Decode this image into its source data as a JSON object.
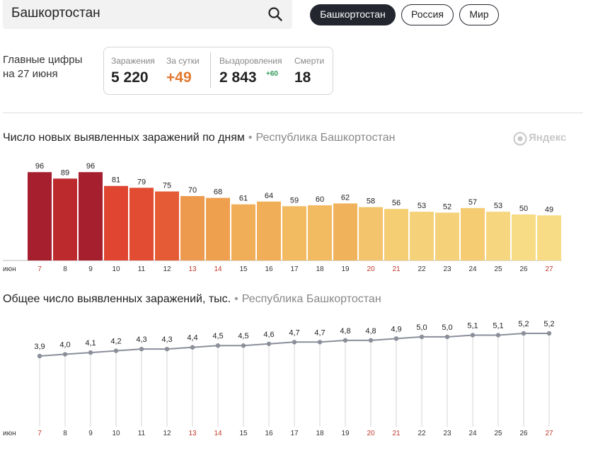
{
  "search": {
    "value": "Башкортостан"
  },
  "region_tabs": [
    {
      "label": "Башкортостан",
      "active": true
    },
    {
      "label": "Россия",
      "active": false
    },
    {
      "label": "Мир",
      "active": false
    }
  ],
  "main_figures": {
    "title_line1": "Главные цифры",
    "title_line2": "на 27 июня",
    "infections_label": "Заражения",
    "infections_value": "5 220",
    "per_day_label": "За сутки",
    "per_day_value": "+49",
    "recovered_label": "Выздоровления",
    "recovered_value": "2 843",
    "recovered_delta": "+60",
    "deaths_label": "Смерти",
    "deaths_value": "18"
  },
  "logo_text": "Яндекс",
  "chart_data": [
    {
      "type": "bar",
      "title": "Число новых выявленных заражений по дням",
      "region": "Республика Башкортостан",
      "month_label": "июн",
      "categories": [
        "7",
        "8",
        "9",
        "10",
        "11",
        "12",
        "13",
        "14",
        "15",
        "16",
        "17",
        "18",
        "19",
        "20",
        "21",
        "22",
        "23",
        "24",
        "25",
        "26",
        "27"
      ],
      "values": [
        96,
        89,
        96,
        81,
        79,
        75,
        70,
        68,
        61,
        64,
        59,
        60,
        62,
        58,
        56,
        53,
        52,
        57,
        53,
        50,
        49
      ],
      "weekend_categories": [
        "7",
        "13",
        "14",
        "20",
        "21",
        "27"
      ],
      "colors": [
        "#a51f2e",
        "#bd2a2e",
        "#a51f2e",
        "#df4531",
        "#e24c32",
        "#e45b36",
        "#ee9a4e",
        "#eea04f",
        "#f1ae58",
        "#f1ae58",
        "#f2bb62",
        "#f2bb62",
        "#f0b25b",
        "#f4c46c",
        "#f5cd73",
        "#f5d27a",
        "#f5d27a",
        "#f6cc73",
        "#f6d77f",
        "#f7db85",
        "#f7db85"
      ],
      "ylim": [
        0,
        100
      ]
    },
    {
      "type": "line",
      "title": "Общее число выявленных заражений, тыс.",
      "region": "Республика Башкортостан",
      "month_label": "июн",
      "categories": [
        "7",
        "8",
        "9",
        "10",
        "11",
        "12",
        "13",
        "14",
        "15",
        "16",
        "17",
        "18",
        "19",
        "20",
        "21",
        "22",
        "23",
        "24",
        "25",
        "26",
        "27"
      ],
      "values": [
        3.9,
        4.0,
        4.1,
        4.2,
        4.3,
        4.3,
        4.4,
        4.5,
        4.5,
        4.6,
        4.7,
        4.7,
        4.8,
        4.8,
        4.9,
        5.0,
        5.0,
        5.1,
        5.1,
        5.2,
        5.2
      ],
      "labels": [
        "3,9",
        "4,0",
        "4,1",
        "4,2",
        "4,3",
        "4,3",
        "4,4",
        "4,5",
        "4,5",
        "4,6",
        "4,7",
        "4,7",
        "4,8",
        "4,8",
        "4,9",
        "5,0",
        "5,0",
        "5,1",
        "5,1",
        "5,2",
        "5,2"
      ],
      "weekend_categories": [
        "7",
        "13",
        "14",
        "20",
        "21",
        "27"
      ],
      "line_color": "#8b8f9a"
    }
  ]
}
